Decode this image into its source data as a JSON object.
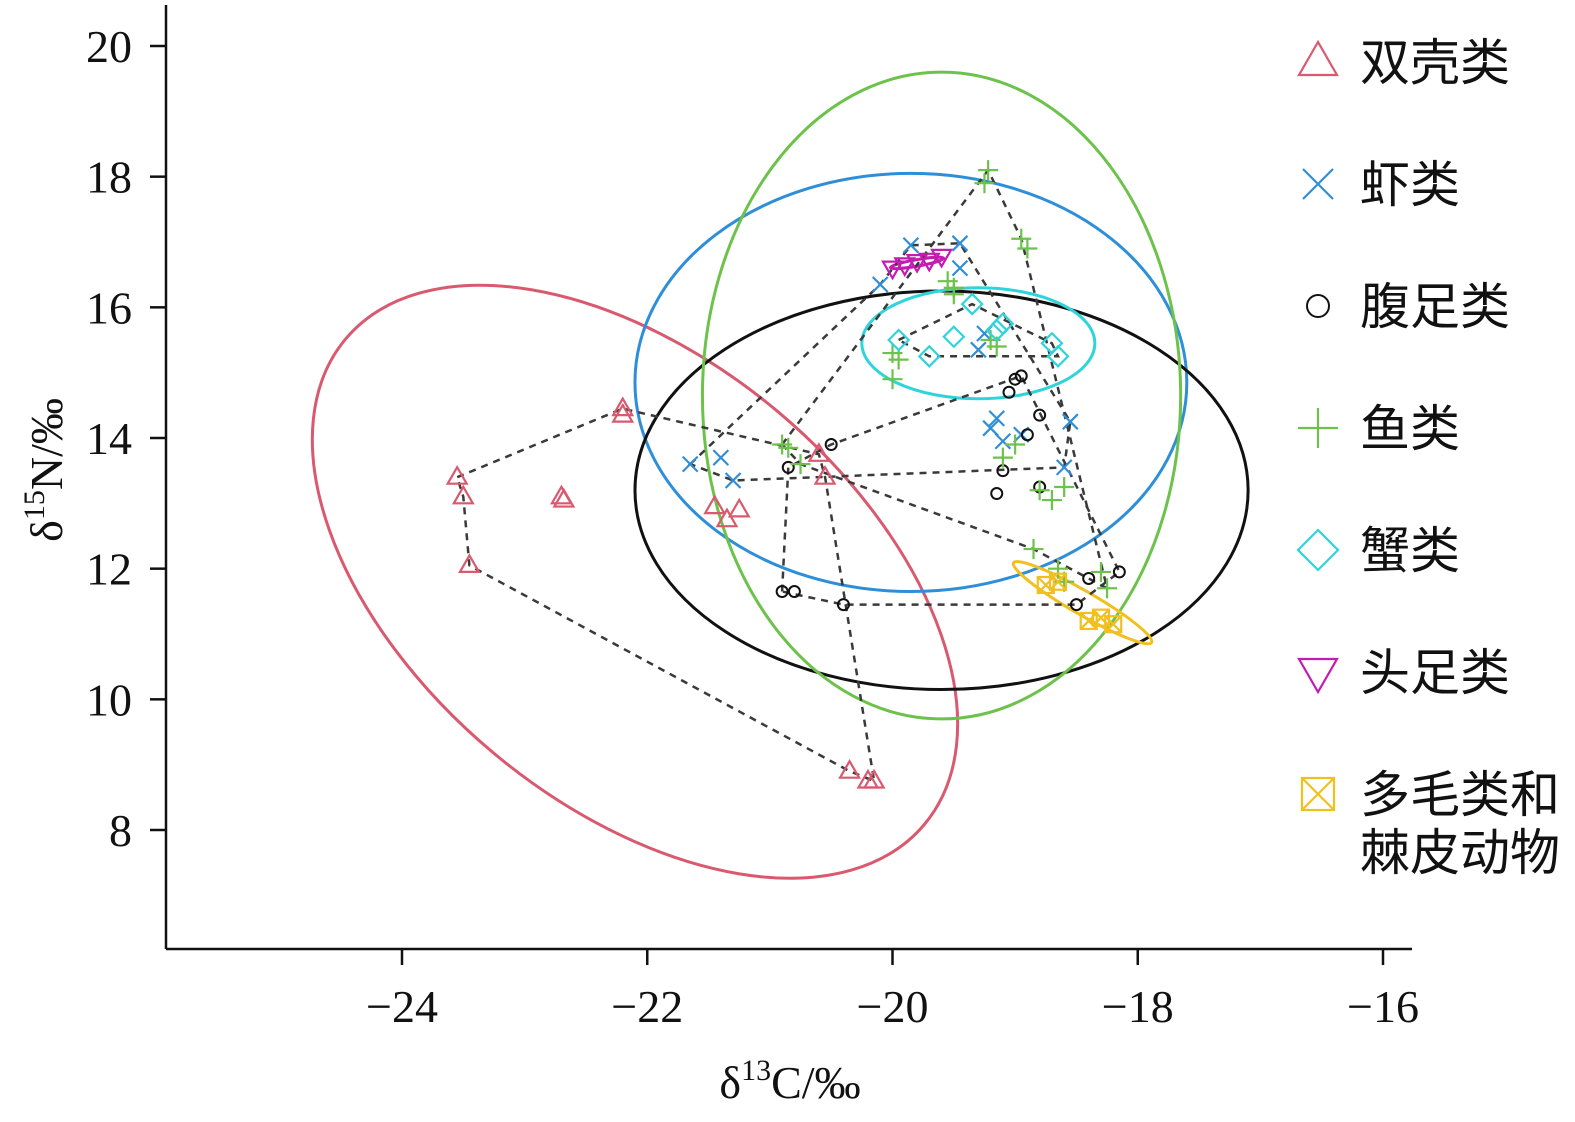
{
  "chart_data": {
    "type": "scatter",
    "xlabel": "δ13C/‰",
    "ylabel": "δ15N/‰",
    "xlim": [
      -25.9,
      -15.7
    ],
    "ylim": [
      6.2,
      20.6
    ],
    "xticks": [
      -24,
      -22,
      -20,
      -18,
      -16
    ],
    "yticks": [
      8,
      10,
      12,
      14,
      16,
      18,
      20
    ],
    "xtick_labels": [
      "−24",
      "−22",
      "−20",
      "−18",
      "−16"
    ],
    "ytick_labels": [
      "8",
      "10",
      "12",
      "14",
      "16",
      "18",
      "20"
    ],
    "legend_position": "right",
    "series": [
      {
        "name": "双壳类",
        "marker": "triangle-up",
        "color": "#D9596E",
        "points": [
          [
            -23.55,
            13.4
          ],
          [
            -23.5,
            13.1
          ],
          [
            -23.45,
            12.05
          ],
          [
            -22.7,
            13.1
          ],
          [
            -22.68,
            13.05
          ],
          [
            -22.2,
            14.45
          ],
          [
            -22.2,
            14.35
          ],
          [
            -21.45,
            12.95
          ],
          [
            -21.35,
            12.75
          ],
          [
            -21.25,
            12.9
          ],
          [
            -20.6,
            13.75
          ],
          [
            -20.55,
            13.4
          ],
          [
            -20.35,
            8.9
          ],
          [
            -20.2,
            8.75
          ],
          [
            -20.15,
            8.75
          ]
        ],
        "hull": [
          [
            -23.55,
            13.4
          ],
          [
            -22.2,
            14.45
          ],
          [
            -20.6,
            13.75
          ],
          [
            -20.55,
            13.4
          ],
          [
            -20.15,
            8.75
          ],
          [
            -20.35,
            8.9
          ],
          [
            -23.45,
            12.05
          ],
          [
            -23.5,
            13.1
          ]
        ],
        "ellipse": {
          "cx": -22.1,
          "cy": 11.8,
          "rx": 3.08,
          "ry": 3.4,
          "angle_deg": 40
        }
      },
      {
        "name": "虾类",
        "marker": "x",
        "color": "#2E8FD8",
        "points": [
          [
            -21.65,
            13.6
          ],
          [
            -21.4,
            13.7
          ],
          [
            -21.3,
            13.35
          ],
          [
            -20.1,
            16.35
          ],
          [
            -19.85,
            16.95
          ],
          [
            -19.45,
            16.98
          ],
          [
            -19.45,
            16.6
          ],
          [
            -19.3,
            15.35
          ],
          [
            -19.25,
            15.6
          ],
          [
            -19.2,
            14.15
          ],
          [
            -19.15,
            14.3
          ],
          [
            -19.1,
            13.95
          ],
          [
            -18.95,
            14.05
          ],
          [
            -18.6,
            13.55
          ],
          [
            -18.55,
            14.25
          ]
        ],
        "hull": [
          [
            -21.65,
            13.6
          ],
          [
            -20.1,
            16.35
          ],
          [
            -19.85,
            16.95
          ],
          [
            -19.45,
            16.98
          ],
          [
            -18.55,
            14.25
          ],
          [
            -18.6,
            13.55
          ],
          [
            -21.3,
            13.35
          ]
        ],
        "ellipse": {
          "cx": -19.85,
          "cy": 14.85,
          "rx": 2.25,
          "ry": 3.2,
          "angle_deg": 0
        }
      },
      {
        "name": "腹足类",
        "marker": "circle",
        "color": "#111111",
        "points": [
          [
            -20.9,
            11.65
          ],
          [
            -20.85,
            13.55
          ],
          [
            -20.8,
            11.65
          ],
          [
            -20.5,
            13.9
          ],
          [
            -20.4,
            11.45
          ],
          [
            -19.15,
            13.15
          ],
          [
            -19.1,
            13.5
          ],
          [
            -19.05,
            14.7
          ],
          [
            -19.0,
            14.9
          ],
          [
            -18.95,
            14.95
          ],
          [
            -18.9,
            14.05
          ],
          [
            -18.8,
            13.25
          ],
          [
            -18.8,
            14.35
          ],
          [
            -18.5,
            11.45
          ],
          [
            -18.4,
            11.85
          ],
          [
            -18.15,
            11.95
          ]
        ],
        "hull": [
          [
            -20.9,
            11.65
          ],
          [
            -20.85,
            13.55
          ],
          [
            -20.5,
            13.9
          ],
          [
            -18.95,
            14.95
          ],
          [
            -18.15,
            11.95
          ],
          [
            -18.5,
            11.45
          ],
          [
            -20.4,
            11.45
          ]
        ],
        "ellipse": {
          "cx": -19.6,
          "cy": 13.2,
          "rx": 2.5,
          "ry": 3.05,
          "angle_deg": 0
        }
      },
      {
        "name": "鱼类",
        "marker": "plus",
        "color": "#6CC24A",
        "points": [
          [
            -20.9,
            13.9
          ],
          [
            -20.85,
            13.85
          ],
          [
            -20.75,
            13.6
          ],
          [
            -20.0,
            14.9
          ],
          [
            -20.0,
            15.3
          ],
          [
            -19.95,
            15.2
          ],
          [
            -19.55,
            16.4
          ],
          [
            -19.5,
            16.3
          ],
          [
            -19.5,
            16.2
          ],
          [
            -19.25,
            17.9
          ],
          [
            -19.22,
            18.1
          ],
          [
            -19.2,
            15.5
          ],
          [
            -19.15,
            15.4
          ],
          [
            -19.1,
            13.7
          ],
          [
            -19.0,
            13.9
          ],
          [
            -18.95,
            17.05
          ],
          [
            -18.9,
            16.9
          ],
          [
            -18.85,
            12.3
          ],
          [
            -18.8,
            13.2
          ],
          [
            -18.7,
            13.05
          ],
          [
            -18.65,
            12.0
          ],
          [
            -18.6,
            13.25
          ],
          [
            -18.6,
            11.8
          ],
          [
            -18.3,
            11.95
          ],
          [
            -18.25,
            11.7
          ]
        ],
        "hull": [
          [
            -20.9,
            13.9
          ],
          [
            -19.22,
            18.1
          ],
          [
            -18.95,
            17.05
          ],
          [
            -18.25,
            11.7
          ],
          [
            -18.85,
            12.3
          ],
          [
            -20.75,
            13.6
          ]
        ],
        "ellipse": {
          "cx": -19.6,
          "cy": 14.65,
          "rx": 1.95,
          "ry": 4.95,
          "angle_deg": 0
        }
      },
      {
        "name": "蟹类",
        "marker": "diamond",
        "color": "#2FD4DA",
        "points": [
          [
            -19.95,
            15.5
          ],
          [
            -19.7,
            15.25
          ],
          [
            -19.5,
            15.55
          ],
          [
            -19.35,
            16.05
          ],
          [
            -19.15,
            15.65
          ],
          [
            -19.1,
            15.75
          ],
          [
            -18.7,
            15.45
          ],
          [
            -18.65,
            15.25
          ]
        ],
        "hull": [
          [
            -19.95,
            15.5
          ],
          [
            -19.35,
            16.05
          ],
          [
            -18.7,
            15.45
          ],
          [
            -18.65,
            15.25
          ],
          [
            -19.7,
            15.25
          ]
        ],
        "ellipse": {
          "cx": -19.3,
          "cy": 15.45,
          "rx": 0.95,
          "ry": 0.85,
          "angle_deg": 0
        }
      },
      {
        "name": "头足类",
        "marker": "triangle-down",
        "color": "#C41BB0",
        "points": [
          [
            -20.0,
            16.6
          ],
          [
            -19.9,
            16.65
          ],
          [
            -19.8,
            16.7
          ],
          [
            -19.7,
            16.72
          ],
          [
            -19.6,
            16.78
          ]
        ],
        "hull": [],
        "ellipse": {
          "cx": -19.8,
          "cy": 16.68,
          "rx": 0.22,
          "ry": 0.05,
          "angle_deg": -10
        }
      },
      {
        "name": "多毛类和\n棘皮动物",
        "marker": "box-x",
        "color": "#F2C01E",
        "points": [
          [
            -18.75,
            11.75
          ],
          [
            -18.65,
            11.8
          ],
          [
            -18.4,
            11.2
          ],
          [
            -18.3,
            11.25
          ],
          [
            -18.2,
            11.15
          ]
        ],
        "hull": [],
        "ellipse": {
          "cx": -18.45,
          "cy": 11.48,
          "rx": 0.65,
          "ry": 0.18,
          "angle_deg": 30
        }
      }
    ]
  }
}
